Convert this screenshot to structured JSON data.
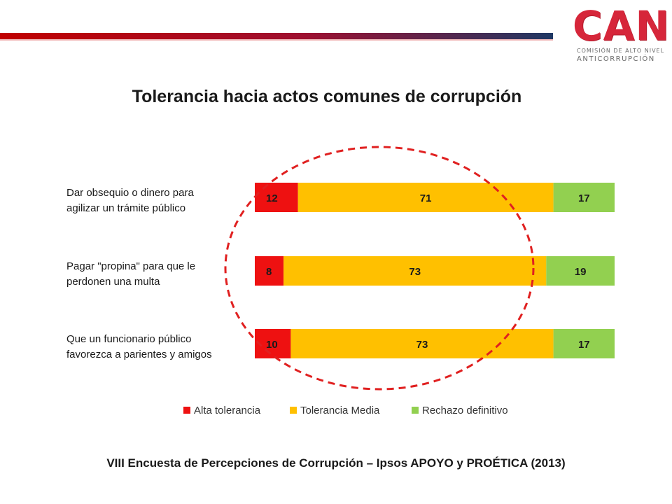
{
  "logo": {
    "word": "CAN",
    "sub1": "COMISIÓN DE ALTO NIVEL",
    "sub2": "ANTICORRUPCIÓN"
  },
  "colors": {
    "band_red": "#c00000",
    "band_navy": "#1f3864",
    "alta": "#ee1111",
    "media": "#ffc000",
    "rechazo": "#92d050",
    "circle": "#e02020"
  },
  "chart_data": {
    "type": "bar",
    "orientation": "horizontal",
    "stacked": true,
    "title": "Tolerancia hacia actos comunes de corrupción",
    "categories": [
      [
        "Dar obsequio o dinero para",
        "agilizar un trámite público"
      ],
      [
        "Pagar \"propina\" para que le",
        "perdonen una multa"
      ],
      [
        "Que un funcionario público",
        "favorezca a parientes y amigos"
      ]
    ],
    "series": [
      {
        "name": "Alta tolerancia",
        "values": [
          12,
          8,
          10
        ],
        "color": "#ee1111"
      },
      {
        "name": "Tolerancia Media",
        "values": [
          71,
          73,
          73
        ],
        "color": "#ffc000"
      },
      {
        "name": "Rechazo definitivo",
        "values": [
          17,
          19,
          17
        ],
        "color": "#92d050"
      }
    ],
    "xlim": [
      0,
      100
    ],
    "grid": false,
    "legend": "bottom",
    "annotation": "dashed red ellipse around the Alta tolerancia values"
  },
  "footer": "VIII Encuesta de Percepciones de Corrupción – Ipsos APOYO y PROÉTICA (2013)"
}
